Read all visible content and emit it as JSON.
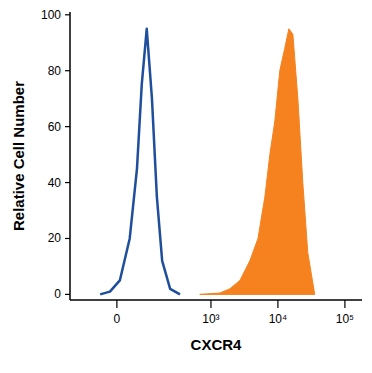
{
  "chart_data": {
    "type": "histogram",
    "x_label": "CXCR4",
    "y_label": "Relative Cell Number",
    "log": "x",
    "xlim": [
      -190,
      180000
    ],
    "xticks": [
      0,
      {
        "value": 1000,
        "label": "10³"
      },
      {
        "value": 10000,
        "label": "10⁴"
      },
      {
        "value": 100000,
        "label": "10⁵"
      }
    ],
    "ylim": [
      -2,
      101
    ],
    "yticks": [
      0,
      20,
      40,
      60,
      80,
      100
    ],
    "series": [
      {
        "color": "#f5821f",
        "type": "area",
        "x": [
          680,
          1360,
          1920,
          2710,
          3810,
          5040,
          6400,
          7580,
          9000,
          10670,
          12650,
          14570,
          16740,
          19860,
          23540,
          27900,
          35460
        ],
        "values": [
          0,
          0.5,
          2,
          5,
          12,
          20,
          35,
          50,
          62,
          80,
          88,
          95,
          93,
          70,
          40,
          15,
          0
        ]
      },
      {
        "color": "#1f4e9c",
        "type": "line",
        "x": [
          -48,
          -19,
          8,
          36,
          59,
          76,
          96,
          120,
          146,
          179,
          240,
          341
        ],
        "values": [
          0,
          1,
          5,
          20,
          45,
          75,
          95,
          70,
          35,
          12,
          2,
          0
        ]
      }
    ]
  }
}
